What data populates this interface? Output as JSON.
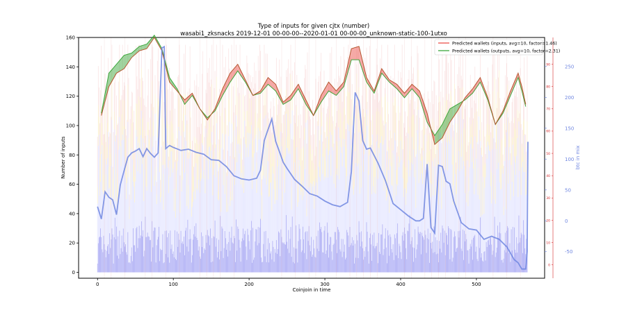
{
  "chart_data": {
    "type": "line",
    "title": "Type of inputs for given cjtx (number)",
    "subtitle": "wasabi1_zksnacks 2019-12-01 00-00-00--2020-01-01 00-00-00_unknown-static-100-1utxo",
    "xlabel": "Coinjoin in time",
    "ylabel": "Number of inputs",
    "y2label": "btc in mix",
    "xlim": [
      -25,
      590
    ],
    "ylim": [
      -4,
      160
    ],
    "y_red_lim": [
      -6,
      102
    ],
    "y_btc_lim": [
      -93,
      297
    ],
    "x_ticks": [
      0,
      100,
      200,
      300,
      400,
      500
    ],
    "y_ticks": [
      0,
      20,
      40,
      60,
      80,
      100,
      120,
      140,
      160
    ],
    "y_red_ticks": [
      0,
      10,
      20,
      30,
      40,
      50,
      60,
      70,
      80,
      90
    ],
    "y_btc_ticks": [
      -50,
      0,
      50,
      100,
      150,
      200,
      250
    ],
    "legend_position": "top-right",
    "colors": {
      "inputs": "#e8413a",
      "outputs": "#2ca02c",
      "btc": "#6f86e0",
      "red_axis": "#d62728",
      "bars_blue": "#8c8cf0",
      "bars_light": "#d8dcff",
      "bars_yellow": "#f7e3a6",
      "bars_pink": "#f5c4c4"
    },
    "series": [
      {
        "name": "Predicted wallets (inputs, avg=10, factor=1.46)",
        "axis": "red",
        "x": [
          5,
          15,
          25,
          35,
          45,
          55,
          65,
          75,
          85,
          95,
          105,
          115,
          125,
          135,
          145,
          155,
          165,
          175,
          185,
          195,
          205,
          215,
          225,
          235,
          245,
          255,
          265,
          275,
          285,
          295,
          305,
          315,
          325,
          335,
          345,
          355,
          365,
          375,
          385,
          395,
          405,
          415,
          425,
          435,
          445,
          455,
          465,
          475,
          485,
          495,
          505,
          515,
          525,
          535,
          545,
          555,
          560,
          565
        ],
        "y": [
          67,
          80,
          86,
          88,
          93,
          96,
          97,
          102,
          96,
          82,
          78,
          74,
          77,
          70,
          65,
          70,
          79,
          86,
          90,
          83,
          76,
          78,
          84,
          81,
          73,
          76,
          81,
          74,
          67,
          76,
          82,
          78,
          82,
          97,
          98,
          84,
          78,
          88,
          83,
          81,
          77,
          81,
          78,
          68,
          54,
          57,
          64,
          69,
          75,
          79,
          84,
          75,
          63,
          69,
          78,
          86,
          80,
          72
        ]
      },
      {
        "name": "Predicted wallets (outputs, avg=10, factor=2.31)",
        "axis": "red",
        "x": [
          5,
          15,
          25,
          35,
          45,
          55,
          65,
          75,
          85,
          95,
          105,
          115,
          125,
          135,
          145,
          155,
          165,
          175,
          185,
          195,
          205,
          215,
          225,
          235,
          245,
          255,
          265,
          275,
          285,
          295,
          305,
          315,
          325,
          335,
          345,
          355,
          365,
          375,
          385,
          395,
          405,
          415,
          425,
          435,
          445,
          455,
          465,
          475,
          485,
          495,
          505,
          515,
          525,
          535,
          545,
          555,
          560,
          565
        ],
        "y": [
          68,
          86,
          90,
          94,
          95,
          98,
          99,
          103,
          97,
          84,
          79,
          72,
          76,
          70,
          66,
          69,
          76,
          82,
          87,
          82,
          76,
          77,
          81,
          78,
          72,
          74,
          79,
          72,
          67,
          73,
          78,
          76,
          80,
          92,
          92,
          82,
          77,
          86,
          82,
          79,
          75,
          79,
          75,
          64,
          58,
          63,
          70,
          72,
          74,
          77,
          82,
          74,
          63,
          68,
          76,
          84,
          78,
          71
        ]
      },
      {
        "name": "btc in mix",
        "axis": "btc",
        "x": [
          0,
          5,
          10,
          15,
          20,
          25,
          30,
          35,
          40,
          45,
          50,
          55,
          60,
          65,
          70,
          75,
          80,
          85,
          88,
          90,
          95,
          100,
          110,
          120,
          130,
          140,
          150,
          160,
          170,
          180,
          190,
          200,
          210,
          215,
          220,
          225,
          230,
          235,
          240,
          245,
          250,
          260,
          270,
          280,
          290,
          300,
          310,
          320,
          330,
          335,
          340,
          345,
          350,
          355,
          360,
          370,
          380,
          390,
          400,
          410,
          420,
          425,
          430,
          435,
          440,
          445,
          450,
          455,
          460,
          465,
          470,
          480,
          490,
          500,
          510,
          520,
          530,
          540,
          550,
          555,
          560,
          565,
          567,
          568
        ],
        "y": [
          23,
          3,
          47,
          38,
          34,
          10,
          58,
          81,
          103,
          110,
          113,
          117,
          104,
          117,
          109,
          103,
          110,
          280,
          282,
          117,
          122,
          119,
          114,
          116,
          111,
          108,
          99,
          98,
          88,
          73,
          68,
          66,
          69,
          82,
          130,
          148,
          165,
          129,
          112,
          95,
          85,
          67,
          56,
          44,
          40,
          32,
          26,
          23,
          30,
          80,
          208,
          194,
          130,
          116,
          118,
          94,
          65,
          28,
          18,
          8,
          0,
          0,
          4,
          92,
          -11,
          -20,
          90,
          88,
          64,
          60,
          32,
          -3,
          -13,
          -15,
          -30,
          -25,
          -30,
          -42,
          -63,
          -68,
          -78,
          -78,
          -50,
          128
        ]
      }
    ]
  }
}
